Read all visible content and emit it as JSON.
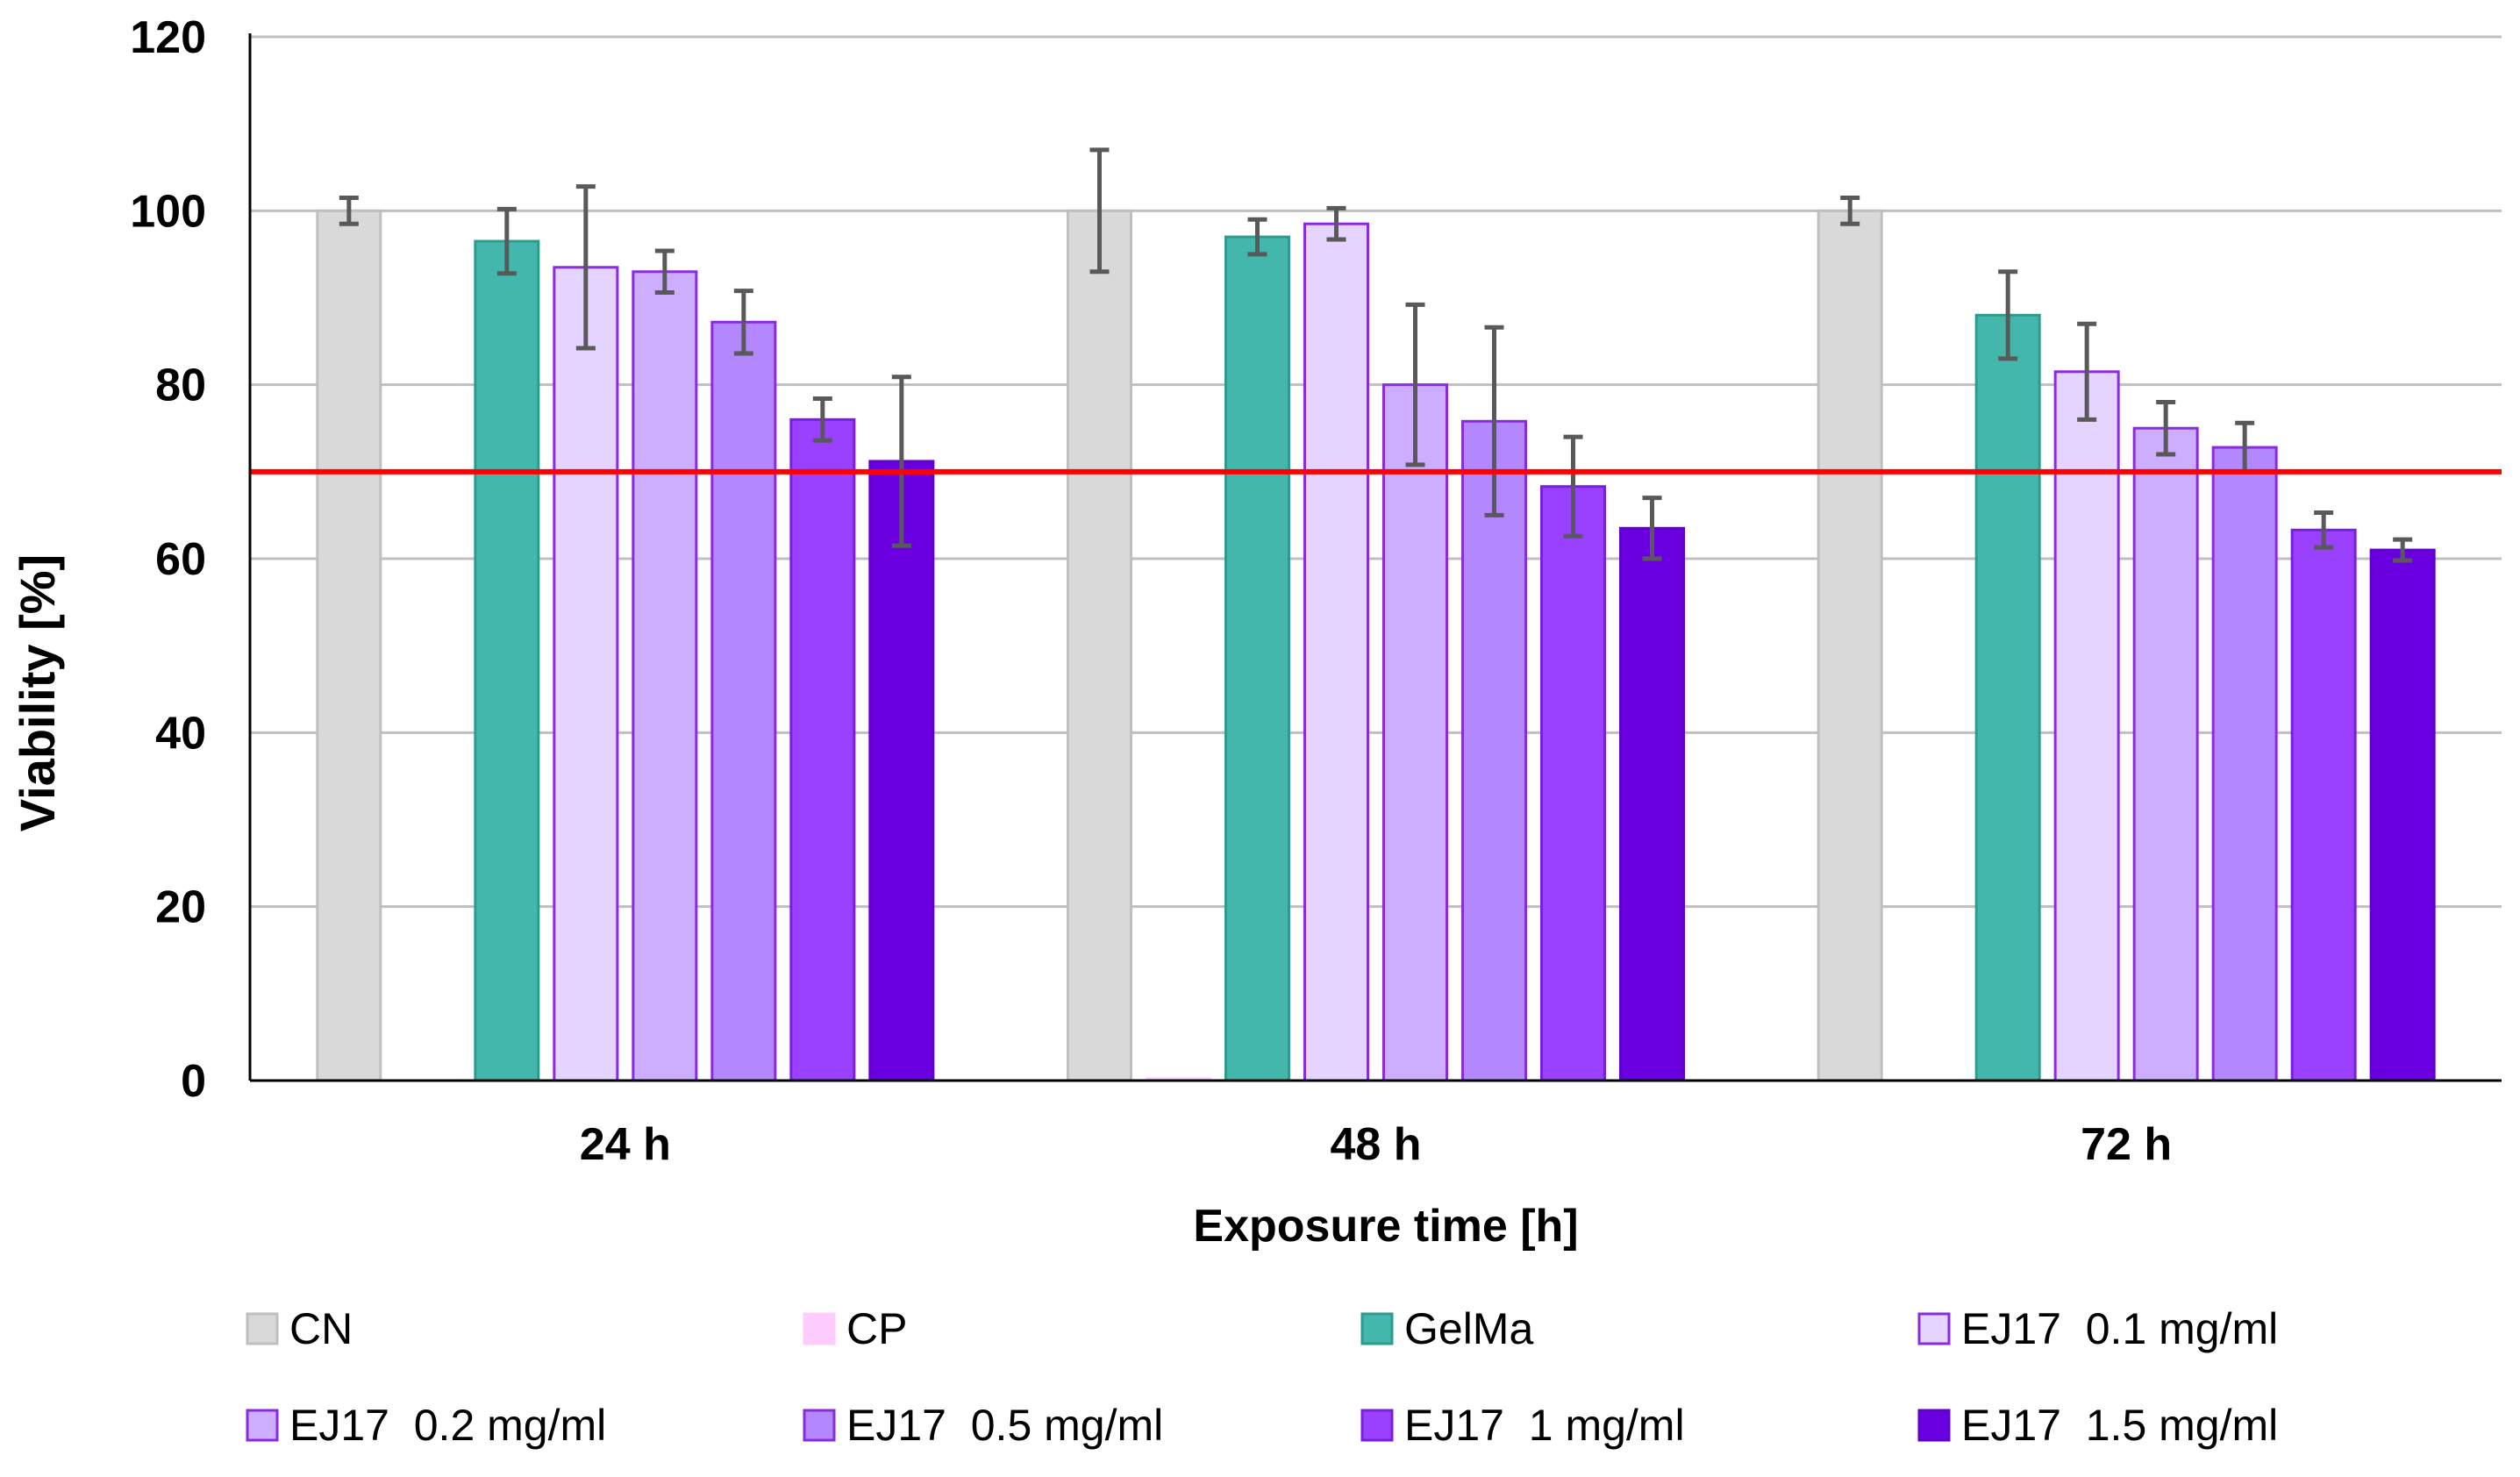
{
  "chart_data": {
    "type": "bar",
    "xlabel": "Exposure time [h]",
    "ylabel": "Viability [%]",
    "ylim": [
      0,
      120
    ],
    "yticks": [
      "0",
      "20",
      "40",
      "60",
      "80",
      "100",
      "120"
    ],
    "categories": [
      "24 h",
      "48 h",
      "72 h"
    ],
    "grid": "horizontal",
    "legend_position": "bottom",
    "reference_line": {
      "y": 70,
      "color": "#ff0000"
    },
    "series": [
      {
        "name": "CN",
        "values": [
          100,
          100,
          100
        ],
        "errors": [
          1.5,
          7,
          1.5
        ],
        "fill": "#d9d9d9",
        "stroke": "#bfbfbf"
      },
      {
        "name": "CP",
        "values": [
          0,
          0.2,
          0
        ],
        "errors": [
          0,
          0,
          0
        ],
        "fill": "#ffccff",
        "stroke": "#ffccff"
      },
      {
        "name": "GelMa",
        "values": [
          96.5,
          97,
          88
        ],
        "errors": [
          3.7,
          2,
          5
        ],
        "fill": "#43b7ab",
        "stroke": "#2e9b8f"
      },
      {
        "name": "EJ17  0.1 mg/ml",
        "values": [
          93.5,
          98.5,
          81.5
        ],
        "errors": [
          9.3,
          1.8,
          5.5
        ],
        "fill": "#e5d4ff",
        "stroke": "#8a2be2"
      },
      {
        "name": "EJ17  0.2 mg/ml",
        "values": [
          93,
          80,
          75
        ],
        "errors": [
          2.4,
          9.2,
          3
        ],
        "fill": "#ccadff",
        "stroke": "#8a2be2"
      },
      {
        "name": "EJ17  0.5 mg/ml",
        "values": [
          87.2,
          75.8,
          72.8
        ],
        "errors": [
          3.6,
          10.8,
          2.8
        ],
        "fill": "#b388ff",
        "stroke": "#8a2be2"
      },
      {
        "name": "EJ17  1 mg/ml",
        "values": [
          76,
          68.3,
          63.3
        ],
        "errors": [
          2.4,
          5.7,
          2
        ],
        "fill": "#9a40ff",
        "stroke": "#7a1fe0"
      },
      {
        "name": "EJ17  1.5 mg/ml",
        "values": [
          71.2,
          63.5,
          61
        ],
        "errors": [
          9.7,
          3.5,
          1.2
        ],
        "fill": "#6a00e0",
        "stroke": "#6000d0"
      }
    ]
  }
}
